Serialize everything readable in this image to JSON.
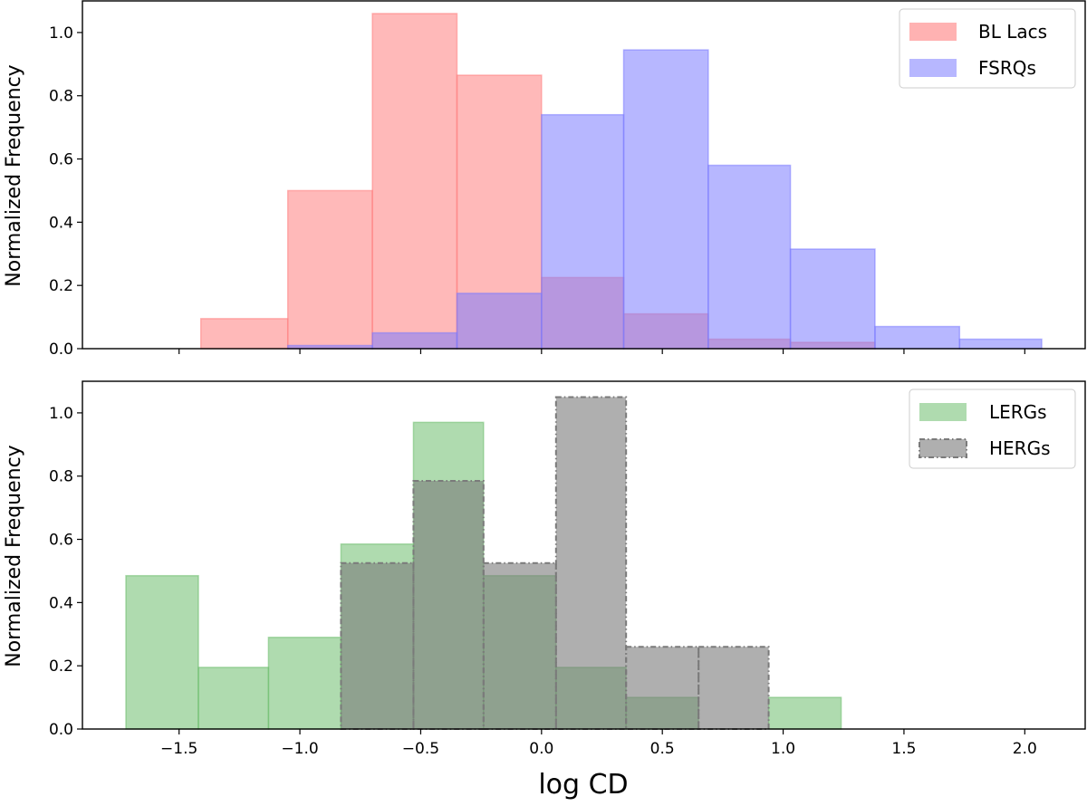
{
  "chart_data": [
    {
      "type": "histogram",
      "ylabel": "Normalized Frequency",
      "xlabel": "",
      "xlim": [
        -1.9,
        2.25
      ],
      "ylim": [
        0,
        1.1
      ],
      "yticks": [
        0.0,
        0.2,
        0.4,
        0.6,
        0.8,
        1.0
      ],
      "ytick_labels": [
        "0.0",
        "0.2",
        "0.4",
        "0.6",
        "0.8",
        "1.0"
      ],
      "legend": {
        "location": "top-right",
        "entries": [
          "BL Lacs",
          "FSRQs"
        ]
      },
      "series": [
        {
          "name": "BL Lacs",
          "color": "#ff7f7f",
          "style": "solid",
          "bins": [
            [
              -1.41,
              -1.05,
              0.095
            ],
            [
              -1.05,
              -0.7,
              0.5
            ],
            [
              -0.7,
              -0.35,
              1.06
            ],
            [
              -0.35,
              0.0,
              0.865
            ],
            [
              0.0,
              0.34,
              0.225
            ],
            [
              0.34,
              0.69,
              0.11
            ],
            [
              0.69,
              1.03,
              0.03
            ],
            [
              1.03,
              1.38,
              0.02
            ]
          ]
        },
        {
          "name": "FSRQs",
          "color": "#7b7bff",
          "style": "solid",
          "bins": [
            [
              -1.05,
              -0.7,
              0.01
            ],
            [
              -0.7,
              -0.35,
              0.05
            ],
            [
              -0.35,
              0.0,
              0.175
            ],
            [
              0.0,
              0.34,
              0.74
            ],
            [
              0.34,
              0.69,
              0.945
            ],
            [
              0.69,
              1.03,
              0.58
            ],
            [
              1.03,
              1.38,
              0.315
            ],
            [
              1.38,
              1.73,
              0.07
            ],
            [
              1.73,
              2.07,
              0.03
            ]
          ]
        }
      ]
    },
    {
      "type": "histogram",
      "ylabel": "Normalized Frequency",
      "xlabel": "log CD",
      "xlim": [
        -1.9,
        2.25
      ],
      "ylim": [
        0,
        1.1
      ],
      "xticks": [
        -1.5,
        -1.0,
        -0.5,
        0.0,
        0.5,
        1.0,
        1.5,
        2.0
      ],
      "xtick_labels": [
        "−1.5",
        "−1.0",
        "−0.5",
        "0.0",
        "0.5",
        "1.0",
        "1.5",
        "2.0"
      ],
      "yticks": [
        0.0,
        0.2,
        0.4,
        0.6,
        0.8,
        1.0
      ],
      "ytick_labels": [
        "0.0",
        "0.2",
        "0.4",
        "0.6",
        "0.8",
        "1.0"
      ],
      "legend": {
        "location": "top-right",
        "entries": [
          "LERGs",
          "HERGs"
        ]
      },
      "series": [
        {
          "name": "LERGs",
          "color": "#6ebd6e",
          "style": "solid",
          "bins": [
            [
              -1.72,
              -1.42,
              0.485
            ],
            [
              -1.42,
              -1.13,
              0.195
            ],
            [
              -1.13,
              -0.83,
              0.29
            ],
            [
              -0.83,
              -0.53,
              0.585
            ],
            [
              -0.53,
              -0.24,
              0.97
            ],
            [
              -0.24,
              0.06,
              0.485
            ],
            [
              0.06,
              0.35,
              0.195
            ],
            [
              0.35,
              0.65,
              0.1
            ],
            [
              0.94,
              1.24,
              0.1
            ]
          ]
        },
        {
          "name": "HERGs",
          "color": "#7a7a7a",
          "style": "dashdot",
          "bins": [
            [
              -0.83,
              -0.53,
              0.525
            ],
            [
              -0.53,
              -0.24,
              0.785
            ],
            [
              -0.24,
              0.06,
              0.525
            ],
            [
              0.06,
              0.35,
              1.05
            ],
            [
              0.35,
              0.65,
              0.26
            ],
            [
              0.65,
              0.94,
              0.26
            ]
          ]
        }
      ]
    }
  ]
}
